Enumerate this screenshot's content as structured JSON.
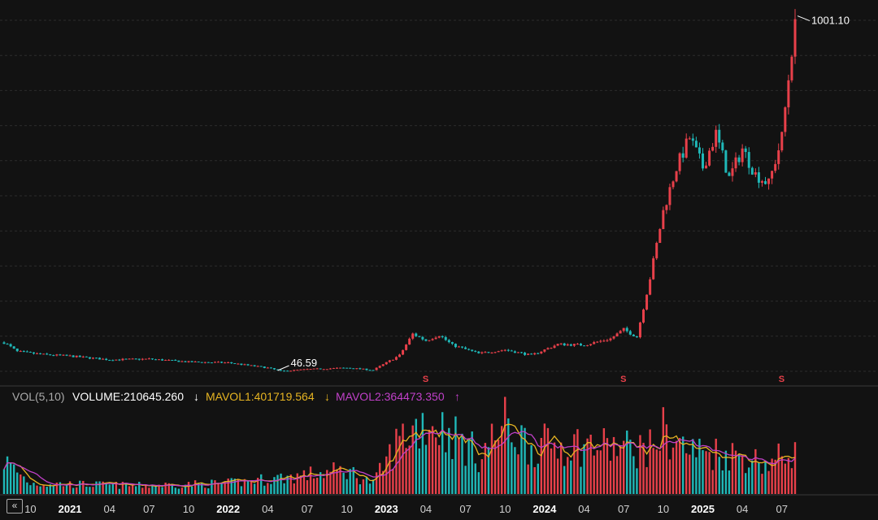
{
  "chart_data": {
    "type": "candlestick",
    "price_panel": {
      "annotations": {
        "high_label": "1001.10",
        "low_label": "46.59"
      },
      "signal_markers": [
        {
          "label": "S",
          "x": "2023-04"
        },
        {
          "label": "S",
          "x": "2024-07"
        },
        {
          "label": "S",
          "x": "2025-07"
        }
      ],
      "price_path_anchors": [
        [
          "2020-08",
          125
        ],
        [
          "2020-09",
          100
        ],
        [
          "2020-11",
          92
        ],
        [
          "2021-01",
          88
        ],
        [
          "2021-04",
          78
        ],
        [
          "2021-07",
          80
        ],
        [
          "2021-10",
          72
        ],
        [
          "2022-01",
          70
        ],
        [
          "2022-04",
          56
        ],
        [
          "2022-05",
          47
        ],
        [
          "2022-07",
          52
        ],
        [
          "2022-10",
          56
        ],
        [
          "2022-12",
          50
        ],
        [
          "2023-02",
          90
        ],
        [
          "2023-03",
          148
        ],
        [
          "2023-04",
          130
        ],
        [
          "2023-05",
          145
        ],
        [
          "2023-06",
          118
        ],
        [
          "2023-08",
          95
        ],
        [
          "2023-10",
          105
        ],
        [
          "2023-12",
          90
        ],
        [
          "2024-02",
          120
        ],
        [
          "2024-04",
          118
        ],
        [
          "2024-06",
          135
        ],
        [
          "2024-07",
          160
        ],
        [
          "2024-08",
          140
        ],
        [
          "2024-09",
          300
        ],
        [
          "2024-10",
          480
        ],
        [
          "2024-11",
          600
        ],
        [
          "2024-12",
          680
        ],
        [
          "2025-01",
          600
        ],
        [
          "2025-02",
          690
        ],
        [
          "2025-03",
          570
        ],
        [
          "2025-04",
          650
        ],
        [
          "2025-05",
          580
        ],
        [
          "2025-06",
          555
        ],
        [
          "2025-07",
          680
        ],
        [
          "2025-08",
          1001.1
        ]
      ]
    },
    "volume_panel": {
      "indicator": "VOL(5,10)",
      "volume_label": "VOLUME:210645.260",
      "volume_arrow": "↓",
      "mavol1_label": "MAVOL1:401719.564",
      "mavol1_arrow": "↓",
      "mavol2_label": "MAVOL2:364473.350",
      "mavol2_arrow": "↑",
      "volume_path_anchors": [
        [
          "2020-08",
          280000
        ],
        [
          "2020-10",
          90000
        ],
        [
          "2021-06",
          70000
        ],
        [
          "2022-01",
          90000
        ],
        [
          "2022-07",
          160000
        ],
        [
          "2022-10",
          200000
        ],
        [
          "2022-12",
          90000
        ],
        [
          "2023-02",
          460000
        ],
        [
          "2023-04",
          620000
        ],
        [
          "2023-06",
          500000
        ],
        [
          "2023-08",
          320000
        ],
        [
          "2023-10",
          580000
        ],
        [
          "2023-12",
          400000
        ],
        [
          "2024-03",
          420000
        ],
        [
          "2024-06",
          390000
        ],
        [
          "2024-09",
          380000
        ],
        [
          "2024-10",
          520000
        ],
        [
          "2024-12",
          360000
        ],
        [
          "2025-02",
          350000
        ],
        [
          "2025-04",
          320000
        ],
        [
          "2025-06",
          250000
        ],
        [
          "2025-08",
          380000
        ]
      ]
    },
    "x_ticks": [
      {
        "label": "10",
        "year": false,
        "x": "2020-10"
      },
      {
        "label": "2021",
        "year": true,
        "x": "2021-01"
      },
      {
        "label": "04",
        "year": false,
        "x": "2021-04"
      },
      {
        "label": "07",
        "year": false,
        "x": "2021-07"
      },
      {
        "label": "10",
        "year": false,
        "x": "2021-10"
      },
      {
        "label": "2022",
        "year": true,
        "x": "2022-01"
      },
      {
        "label": "04",
        "year": false,
        "x": "2022-04"
      },
      {
        "label": "07",
        "year": false,
        "x": "2022-07"
      },
      {
        "label": "10",
        "year": false,
        "x": "2022-10"
      },
      {
        "label": "2023",
        "year": true,
        "x": "2023-01"
      },
      {
        "label": "04",
        "year": false,
        "x": "2023-04"
      },
      {
        "label": "07",
        "year": false,
        "x": "2023-07"
      },
      {
        "label": "10",
        "year": false,
        "x": "2023-10"
      },
      {
        "label": "2024",
        "year": true,
        "x": "2024-01"
      },
      {
        "label": "04",
        "year": false,
        "x": "2024-04"
      },
      {
        "label": "07",
        "year": false,
        "x": "2024-07"
      },
      {
        "label": "10",
        "year": false,
        "x": "2024-10"
      },
      {
        "label": "2025",
        "year": true,
        "x": "2025-01"
      },
      {
        "label": "04",
        "year": false,
        "x": "2025-04"
      },
      {
        "label": "07",
        "year": false,
        "x": "2025-07"
      }
    ],
    "colors": {
      "up": "#e8404a",
      "down": "#1fb8b8",
      "mavol1": "#e6b422",
      "mavol2": "#c040c8",
      "volume_text": "#ffffff",
      "indicator_text": "#aaaaaa"
    }
  },
  "nav": {
    "collapse_icon": "double-chevron-left-icon",
    "collapse_glyph": "«"
  }
}
